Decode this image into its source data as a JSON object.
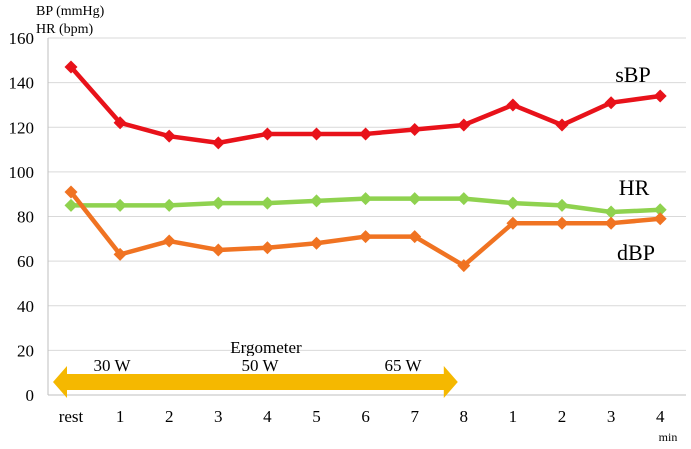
{
  "chart_data": {
    "type": "line",
    "ylabel_lines": [
      "BP (mmHg)",
      "HR (bpm)"
    ],
    "xlabel": "min",
    "categories": [
      "rest",
      "1",
      "2",
      "3",
      "4",
      "5",
      "6",
      "7",
      "8",
      "1",
      "2",
      "3",
      "4"
    ],
    "ylim": [
      0,
      160
    ],
    "yticks": [
      0,
      20,
      40,
      60,
      80,
      100,
      120,
      140,
      160
    ],
    "grid": true,
    "series": [
      {
        "name": "sBP",
        "color": "#e8121a",
        "values": [
          147,
          122,
          116,
          113,
          117,
          117,
          117,
          119,
          121,
          130,
          121,
          131,
          134
        ]
      },
      {
        "name": "HR",
        "color": "#8fd24f",
        "values": [
          85,
          85,
          85,
          86,
          86,
          87,
          88,
          88,
          88,
          86,
          85,
          82,
          83
        ]
      },
      {
        "name": "dBP",
        "color": "#f07322",
        "values": [
          91,
          63,
          69,
          65,
          66,
          68,
          71,
          71,
          58,
          77,
          77,
          77,
          79
        ]
      }
    ],
    "annotation": {
      "title": "Ergometer",
      "arrow_color": "#f5b800",
      "arrow_span": [
        "rest",
        "8"
      ],
      "labels": [
        "30 W",
        "50 W",
        "65 W"
      ]
    }
  }
}
